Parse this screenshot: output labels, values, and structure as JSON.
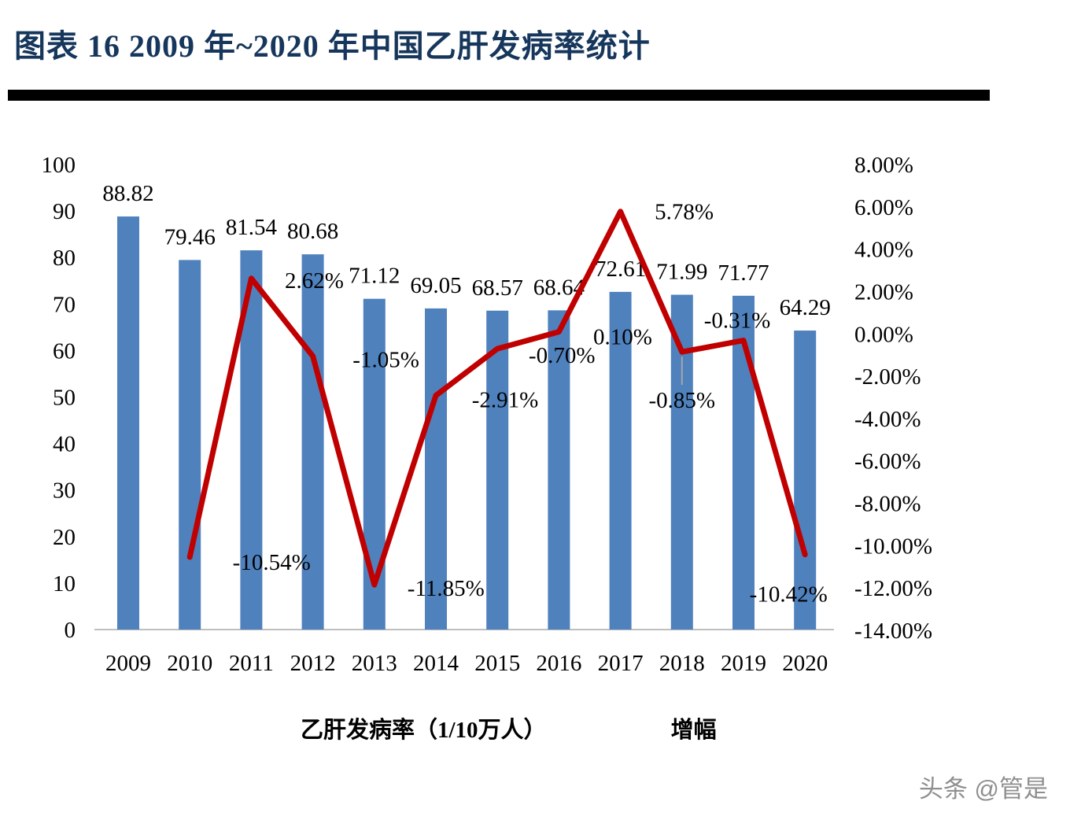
{
  "title": "图表 16 2009 年~2020 年中国乙肝发病率统计",
  "watermark": "头条 @管是",
  "chart_data": {
    "type": "combo-bar-line",
    "title": "图表 16 2009 年~2020 年中国乙肝发病率统计",
    "categories": [
      "2009",
      "2010",
      "2011",
      "2012",
      "2013",
      "2014",
      "2015",
      "2016",
      "2017",
      "2018",
      "2019",
      "2020"
    ],
    "series": [
      {
        "name": "乙肝发病率（1/10万人）",
        "type": "bar",
        "axis": "left",
        "color": "#4F81BD",
        "values": [
          88.82,
          79.46,
          81.54,
          80.68,
          71.12,
          69.05,
          68.57,
          68.64,
          72.61,
          71.99,
          71.77,
          64.29
        ]
      },
      {
        "name": "增幅",
        "type": "line",
        "axis": "right",
        "color": "#C00000",
        "values": [
          null,
          -10.54,
          2.62,
          -1.05,
          -11.85,
          -2.91,
          -0.7,
          0.1,
          5.78,
          -0.85,
          -0.31,
          -10.42
        ]
      }
    ],
    "left_axis": {
      "min": 0,
      "max": 100,
      "step": 10,
      "ticks": [
        "0",
        "10",
        "20",
        "30",
        "40",
        "50",
        "60",
        "70",
        "80",
        "90",
        "100"
      ]
    },
    "right_axis": {
      "min": -14,
      "max": 8,
      "step": 2,
      "ticks": [
        "8.00%",
        "6.00%",
        "4.00%",
        "2.00%",
        "0.00%",
        "-2.00%",
        "-4.00%",
        "-6.00%",
        "-8.00%",
        "-10.00%",
        "-12.00%",
        "-14.00%"
      ]
    },
    "legend_position": "bottom",
    "grid": false
  }
}
